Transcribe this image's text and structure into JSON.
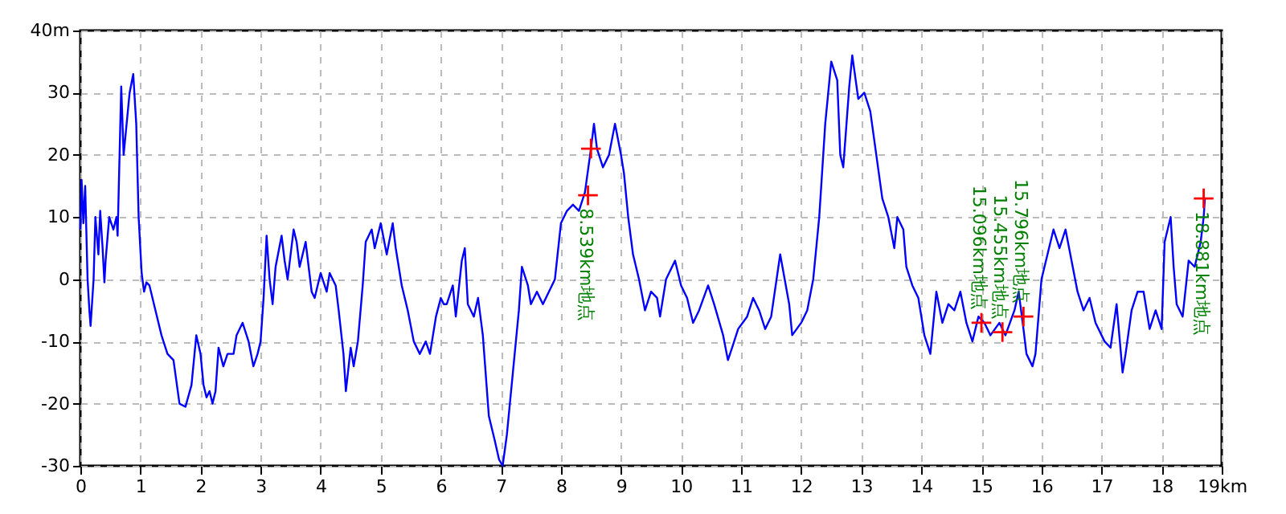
{
  "chart_data": {
    "type": "line",
    "x": [
      0,
      0.02,
      0.05,
      0.08,
      0.12,
      0.15,
      0.17,
      0.22,
      0.25,
      0.3,
      0.33,
      0.37,
      0.4,
      0.42,
      0.48,
      0.55,
      0.6,
      0.62,
      0.65,
      0.68,
      0.72,
      0.78,
      0.82,
      0.88,
      0.93,
      0.97,
      1.02,
      1.06,
      1.1,
      1.15,
      1.25,
      1.35,
      1.45,
      1.55,
      1.65,
      1.75,
      1.85,
      1.93,
      2.0,
      2.05,
      2.1,
      2.15,
      2.2,
      2.25,
      2.3,
      2.38,
      2.45,
      2.55,
      2.6,
      2.7,
      2.8,
      2.88,
      2.95,
      3.0,
      3.05,
      3.1,
      3.15,
      3.2,
      3.25,
      3.35,
      3.4,
      3.45,
      3.55,
      3.6,
      3.65,
      3.75,
      3.85,
      3.9,
      3.95,
      4.0,
      4.1,
      4.15,
      4.25,
      4.3,
      4.38,
      4.42,
      4.5,
      4.55,
      4.62,
      4.7,
      4.75,
      4.85,
      4.9,
      5.0,
      5.1,
      5.2,
      5.25,
      5.35,
      5.45,
      5.55,
      5.65,
      5.75,
      5.82,
      5.92,
      6.0,
      6.05,
      6.1,
      6.2,
      6.25,
      6.35,
      6.4,
      6.45,
      6.55,
      6.62,
      6.7,
      6.8,
      6.9,
      6.97,
      7.03,
      7.1,
      7.2,
      7.3,
      7.35,
      7.45,
      7.5,
      7.6,
      7.7,
      7.8,
      7.9,
      8.0,
      8.1,
      8.2,
      8.3,
      8.4,
      8.5,
      8.55,
      8.6,
      8.7,
      8.8,
      8.9,
      9.0,
      9.05,
      9.12,
      9.2,
      9.3,
      9.4,
      9.5,
      9.6,
      9.65,
      9.75,
      9.8,
      9.9,
      10.0,
      10.1,
      10.2,
      10.3,
      10.45,
      10.55,
      10.7,
      10.78,
      10.85,
      10.95,
      11.1,
      11.2,
      11.3,
      11.4,
      11.5,
      11.65,
      11.8,
      11.85,
      12.0,
      12.1,
      12.2,
      12.3,
      12.4,
      12.5,
      12.6,
      12.65,
      12.7,
      12.8,
      12.85,
      12.95,
      13.05,
      13.15,
      13.25,
      13.35,
      13.45,
      13.55,
      13.6,
      13.7,
      13.75,
      13.85,
      13.95,
      14.05,
      14.15,
      14.25,
      14.35,
      14.45,
      14.55,
      14.65,
      14.75,
      14.85,
      14.95,
      15.05,
      15.15,
      15.3,
      15.4,
      15.55,
      15.62,
      15.7,
      15.75,
      15.85,
      15.9,
      16.0,
      16.1,
      16.2,
      16.3,
      16.4,
      16.5,
      16.6,
      16.7,
      16.8,
      16.9,
      17.05,
      17.15,
      17.25,
      17.35,
      17.4,
      17.5,
      17.6,
      17.7,
      17.8,
      17.9,
      18.0,
      18.05,
      18.15,
      18.2,
      18.25,
      18.35,
      18.45,
      18.55,
      18.65,
      18.7,
      18.72
    ],
    "series": [
      {
        "color": "#0000ff",
        "values": [
          8,
          16,
          9,
          15,
          0,
          -5,
          -7.5,
          0,
          10,
          4,
          11,
          5,
          -0.5,
          3,
          10,
          8,
          10,
          7,
          19,
          31,
          20,
          26,
          30,
          33,
          25,
          10,
          1,
          -2,
          -0.5,
          -1,
          -5,
          -9,
          -12,
          -13,
          -20,
          -20.5,
          -17,
          -9,
          -12,
          -17,
          -19,
          -18,
          -20,
          -18,
          -11,
          -14,
          -12,
          -12,
          -9,
          -7,
          -10,
          -14,
          -12,
          -10,
          -3,
          7,
          0,
          -4,
          2,
          7,
          3,
          0,
          8,
          6,
          2,
          6,
          -2,
          -3,
          -1,
          1,
          -2,
          1,
          -1,
          -5,
          -12,
          -18,
          -11,
          -14,
          -10,
          -1,
          6,
          8,
          5,
          9,
          4,
          9,
          5,
          -1,
          -5,
          -10,
          -12,
          -10,
          -12,
          -6,
          -3,
          -4,
          -4,
          -1,
          -6,
          3,
          5,
          -4,
          -6,
          -3,
          -9,
          -22,
          -26,
          -29,
          -30,
          -25,
          -15,
          -5,
          2,
          -1,
          -4,
          -2,
          -4,
          -2,
          0,
          9,
          11,
          12,
          11,
          14,
          21,
          25,
          21,
          18,
          20,
          25,
          20,
          17,
          10,
          4,
          0,
          -5,
          -2,
          -3,
          -6,
          0,
          1,
          3,
          -1,
          -3,
          -7,
          -5,
          -1,
          -4,
          -9,
          -13,
          -11,
          -8,
          -6,
          -3,
          -5,
          -8,
          -6,
          4,
          -4,
          -9,
          -7,
          -5,
          0,
          10,
          25,
          35,
          32,
          20,
          18,
          31,
          36,
          29,
          30,
          27,
          20,
          13,
          10,
          5,
          10,
          8,
          2,
          -1,
          -3,
          -9,
          -12,
          -2,
          -7,
          -4,
          -5,
          -2,
          -7,
          -10,
          -6,
          -7,
          -9,
          -7,
          -9,
          -5,
          -2,
          -8,
          -12,
          -14,
          -12,
          0,
          4,
          8,
          5,
          8,
          3,
          -2,
          -5,
          -3,
          -7,
          -10,
          -11,
          -4,
          -15,
          -12,
          -5,
          -2,
          -2,
          -8,
          -5,
          -8,
          6,
          10,
          2,
          -4,
          -6,
          3,
          2,
          6,
          10,
          13
        ]
      },
      {
        "type": "scatter",
        "color": "#ff0000",
        "marker": "cross",
        "x": [
          8.45,
          8.5,
          15.0,
          15.35,
          15.7,
          18.7
        ],
        "values": [
          13.5,
          21,
          -7,
          -8.5,
          -6,
          13
        ]
      }
    ],
    "xlim": [
      0,
      19
    ],
    "xticks": [
      0,
      1,
      2,
      3,
      4,
      5,
      6,
      7,
      8,
      9,
      10,
      11,
      12,
      13,
      14,
      15,
      16,
      17,
      {
        "value": 18,
        "label": "18"
      },
      {
        "value": 19,
        "label": "19km"
      }
    ],
    "ylim": [
      -30,
      40
    ],
    "yticks": [
      -30,
      -20,
      -10,
      0,
      10,
      20,
      30,
      {
        "value": 40,
        "label": "40m"
      }
    ],
    "grid": true,
    "marker": "none",
    "annotations": [
      {
        "text": "8.539km地点",
        "x": 8.45,
        "y": 13.5
      },
      {
        "text": "15.096km地点",
        "x": 15.0,
        "y": -7
      },
      {
        "text": "15.455km地点",
        "x": 15.35,
        "y": -8.5
      },
      {
        "text": "15.796km地点",
        "x": 15.7,
        "y": -6
      },
      {
        "text": "18.881km地点",
        "x": 18.7,
        "y": 13
      }
    ]
  }
}
